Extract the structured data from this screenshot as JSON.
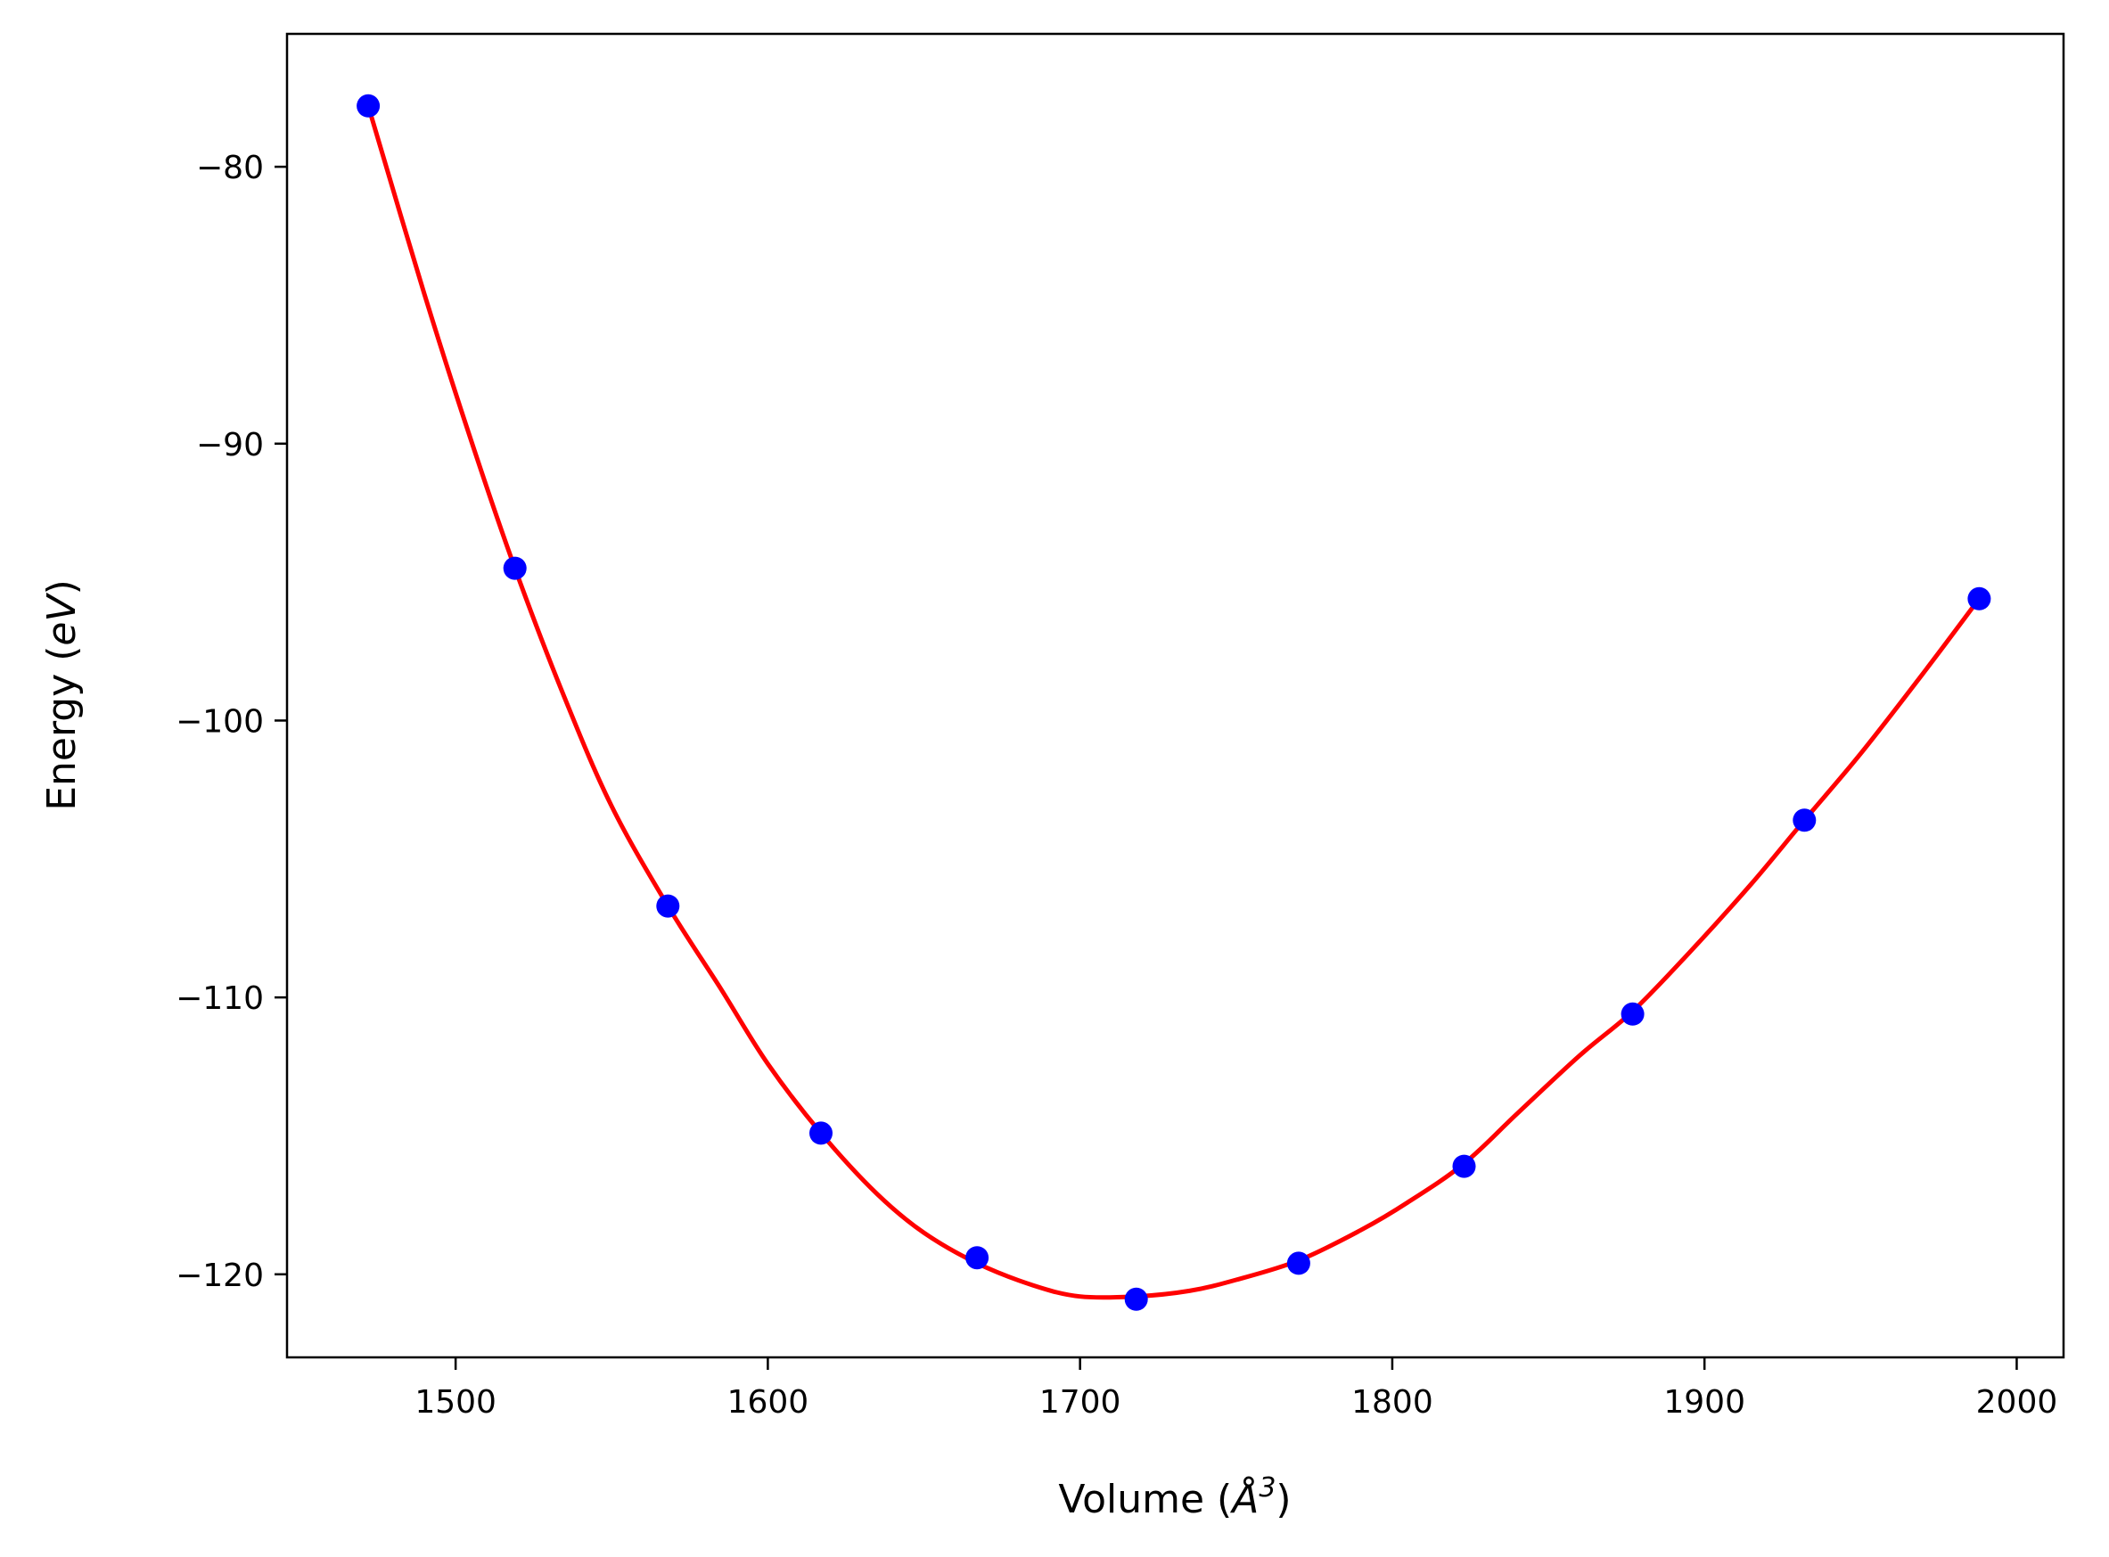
{
  "chart_data": {
    "type": "scatter",
    "xlabel": {
      "prefix": "Volume (",
      "symbol": "Å",
      "sup": "3",
      "suffix": ")"
    },
    "ylabel": {
      "prefix": "Energy (",
      "unit": "eV",
      "suffix": ")"
    },
    "xlim": [
      1446,
      2015
    ],
    "ylim": [
      -123,
      -75.2
    ],
    "xticks": [
      1500,
      1600,
      1700,
      1800,
      1900,
      2000
    ],
    "yticks": [
      -80,
      -90,
      -100,
      -110,
      -120
    ],
    "grid": false,
    "series": [
      {
        "kind": "points",
        "color": "#0000ff",
        "x": [
          1472,
          1519,
          1568,
          1617,
          1667,
          1718,
          1770,
          1823,
          1877,
          1932,
          1988
        ],
        "y": [
          -77.8,
          -94.5,
          -106.7,
          -114.9,
          -119.4,
          -120.9,
          -119.6,
          -116.1,
          -110.6,
          -103.6,
          -95.6
        ]
      },
      {
        "kind": "fit-curve",
        "color": "#ff0000",
        "x": [
          1472,
          1490,
          1505,
          1519,
          1535,
          1550,
          1568,
          1585,
          1600,
          1617,
          1635,
          1650,
          1667,
          1685,
          1700,
          1718,
          1735,
          1750,
          1770,
          1790,
          1805,
          1823,
          1840,
          1860,
          1877,
          1895,
          1915,
          1932,
          1950,
          1970,
          1988
        ],
        "y": [
          -77.8,
          -84.6,
          -89.9,
          -94.5,
          -99.2,
          -103.1,
          -106.7,
          -109.7,
          -112.4,
          -114.9,
          -117.1,
          -118.5,
          -119.6,
          -120.4,
          -120.8,
          -120.8,
          -120.6,
          -120.2,
          -119.5,
          -118.4,
          -117.4,
          -116.0,
          -114.2,
          -112.1,
          -110.5,
          -108.4,
          -105.9,
          -103.6,
          -101.2,
          -98.3,
          -95.6
        ]
      }
    ]
  }
}
